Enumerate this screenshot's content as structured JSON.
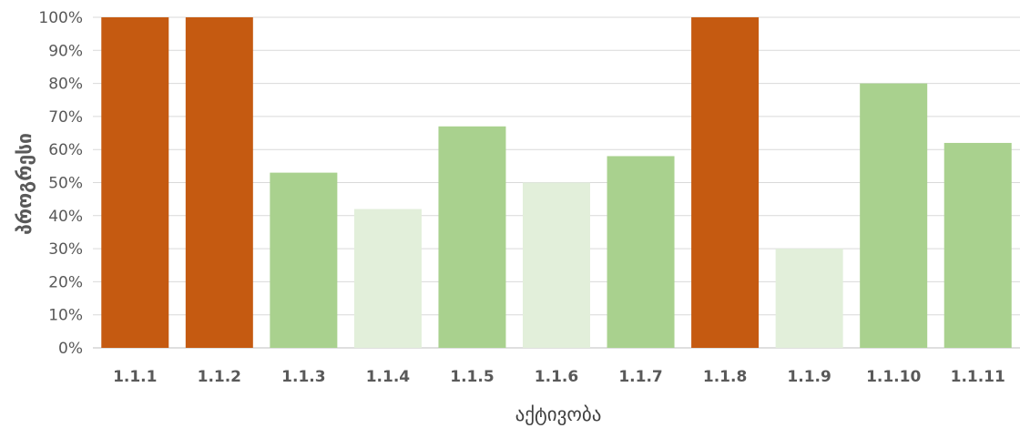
{
  "chart_data": {
    "type": "bar",
    "categories": [
      "1.1.1",
      "1.1.2",
      "1.1.3",
      "1.1.4",
      "1.1.5",
      "1.1.6",
      "1.1.7",
      "1.1.8",
      "1.1.9",
      "1.1.10",
      "1.1.11"
    ],
    "values": [
      100,
      100,
      53,
      42,
      67,
      50,
      58,
      100,
      30,
      80,
      62
    ],
    "bar_colors": [
      "#c55a11",
      "#c55a11",
      "#a9d18e",
      "#e2efda",
      "#a9d18e",
      "#e2efda",
      "#a9d18e",
      "#c55a11",
      "#e2efda",
      "#a9d18e",
      "#a9d18e"
    ],
    "title": "",
    "xlabel": "აქტივობა",
    "ylabel": "პროგრესი",
    "ylim": [
      0,
      100
    ],
    "yticks": [
      "0%",
      "10%",
      "20%",
      "30%",
      "40%",
      "50%",
      "60%",
      "70%",
      "80%",
      "90%",
      "100%"
    ],
    "grid": true,
    "legend": "none"
  }
}
